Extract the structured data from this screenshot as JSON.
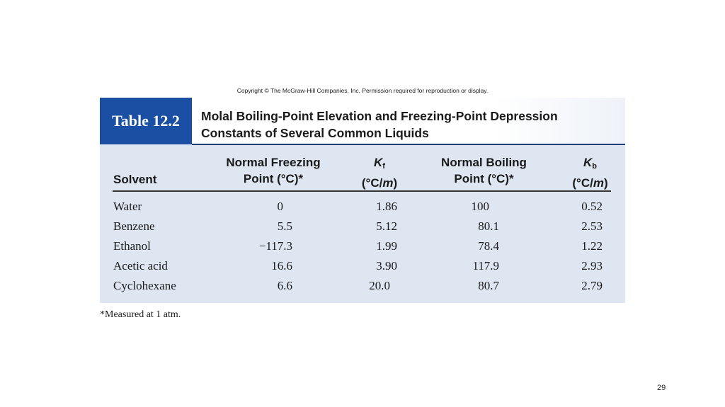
{
  "copyright": "Copyright © The McGraw-Hill Companies, Inc. Permission required for reproduction or display.",
  "table": {
    "tag": "Table 12.2",
    "title_line1": "Molal Boiling-Point Elevation and Freezing-Point Depression",
    "title_line2": "Constants of Several Common Liquids",
    "headers": {
      "solvent": "Solvent",
      "freezing_line1": "Normal Freezing",
      "freezing_line2": "Point (°C)*",
      "kf_symbol": "K",
      "kf_sub": "f",
      "kf_unit_pre": "(°C/",
      "kf_unit_m": "m",
      "kf_unit_post": ")",
      "boiling_line1": "Normal Boiling",
      "boiling_line2": "Point (°C)*",
      "kb_symbol": "K",
      "kb_sub": "b",
      "kb_unit_pre": "(°C/",
      "kb_unit_m": "m",
      "kb_unit_post": ")"
    },
    "rows": [
      {
        "solvent": "Water",
        "freezing": "0",
        "kf": "1.86",
        "boiling": "100",
        "kb": "0.52"
      },
      {
        "solvent": "Benzene",
        "freezing": "5.5",
        "kf": "5.12",
        "boiling": "80.1",
        "kb": "2.53"
      },
      {
        "solvent": "Ethanol",
        "freezing": "−117.3",
        "kf": "1.99",
        "boiling": "78.4",
        "kb": "1.22"
      },
      {
        "solvent": "Acetic acid",
        "freezing": "16.6",
        "kf": "3.90",
        "boiling": "117.9",
        "kb": "2.93"
      },
      {
        "solvent": "Cyclohexane",
        "freezing": "6.6",
        "kf": "20.0",
        "boiling": "80.7",
        "kb": "2.79"
      }
    ]
  },
  "footnote": "*Measured at 1 atm.",
  "page_number": "29",
  "colors": {
    "tag_background": "#1a4fa3",
    "table_background": "#dde6f1"
  }
}
